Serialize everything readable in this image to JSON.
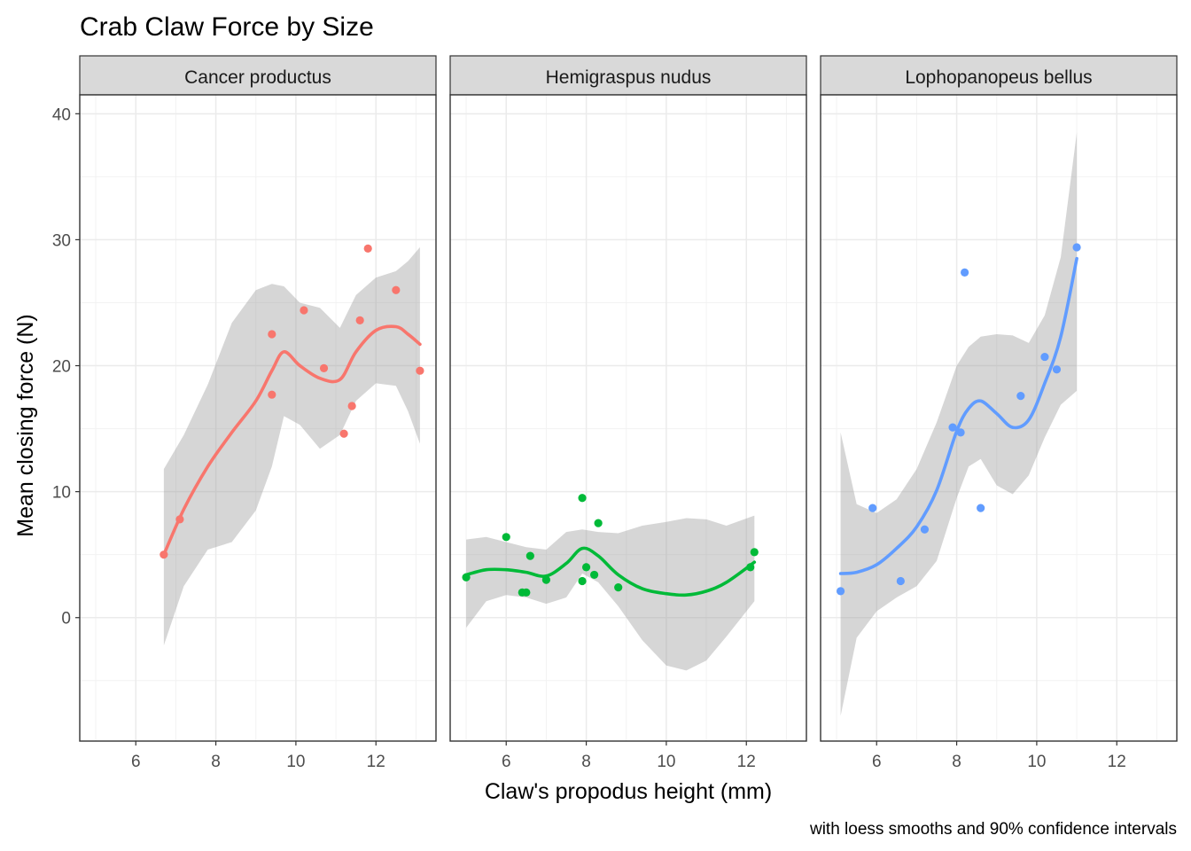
{
  "chart_data": {
    "type": "scatter",
    "title": "Crab Claw Force by Size",
    "xlabel": "Claw's propodus height (mm)",
    "ylabel": "Mean closing force (N)",
    "caption": "with loess smooths and 90% confidence intervals",
    "xlim": [
      4.6,
      13.5
    ],
    "ylim": [
      -9.8,
      41.5
    ],
    "x_ticks": [
      6,
      8,
      10,
      12
    ],
    "y_ticks": [
      0,
      10,
      20,
      30,
      40
    ],
    "grid": true,
    "panels": [
      {
        "name": "Cancer productus",
        "color": "#F8766D",
        "points": [
          {
            "x": 6.7,
            "y": 5.0
          },
          {
            "x": 7.1,
            "y": 7.8
          },
          {
            "x": 9.4,
            "y": 22.5
          },
          {
            "x": 9.4,
            "y": 17.7
          },
          {
            "x": 10.2,
            "y": 24.4
          },
          {
            "x": 10.7,
            "y": 19.8
          },
          {
            "x": 11.2,
            "y": 14.6
          },
          {
            "x": 11.4,
            "y": 16.8
          },
          {
            "x": 11.6,
            "y": 23.6
          },
          {
            "x": 11.8,
            "y": 29.3
          },
          {
            "x": 12.5,
            "y": 26.0
          },
          {
            "x": 13.1,
            "y": 19.6
          }
        ],
        "smooth": [
          {
            "x": 6.7,
            "y": 5.0,
            "lo": -2.2,
            "hi": 11.8
          },
          {
            "x": 7.2,
            "y": 8.6,
            "lo": 2.5,
            "hi": 14.5
          },
          {
            "x": 7.8,
            "y": 12.0,
            "lo": 5.4,
            "hi": 18.5
          },
          {
            "x": 8.4,
            "y": 14.7,
            "lo": 6.0,
            "hi": 23.4
          },
          {
            "x": 9.0,
            "y": 17.2,
            "lo": 8.5,
            "hi": 26.0
          },
          {
            "x": 9.4,
            "y": 19.6,
            "lo": 12.0,
            "hi": 26.5
          },
          {
            "x": 9.7,
            "y": 21.1,
            "lo": 16.0,
            "hi": 26.3
          },
          {
            "x": 10.1,
            "y": 20.0,
            "lo": 15.3,
            "hi": 25.0
          },
          {
            "x": 10.6,
            "y": 19.0,
            "lo": 13.4,
            "hi": 24.6
          },
          {
            "x": 11.1,
            "y": 18.9,
            "lo": 14.5,
            "hi": 23.0
          },
          {
            "x": 11.5,
            "y": 21.1,
            "lo": 17.2,
            "hi": 25.6
          },
          {
            "x": 12.0,
            "y": 22.8,
            "lo": 18.6,
            "hi": 27.0
          },
          {
            "x": 12.5,
            "y": 23.1,
            "lo": 18.4,
            "hi": 27.5
          },
          {
            "x": 12.8,
            "y": 22.5,
            "lo": 16.4,
            "hi": 28.3
          },
          {
            "x": 13.1,
            "y": 21.7,
            "lo": 13.8,
            "hi": 29.4
          }
        ]
      },
      {
        "name": "Hemigraspus nudus",
        "color": "#00BA38",
        "points": [
          {
            "x": 5.0,
            "y": 3.2
          },
          {
            "x": 6.0,
            "y": 6.4
          },
          {
            "x": 6.4,
            "y": 2.0
          },
          {
            "x": 6.5,
            "y": 2.0
          },
          {
            "x": 6.6,
            "y": 4.9
          },
          {
            "x": 7.0,
            "y": 3.0
          },
          {
            "x": 7.9,
            "y": 9.5
          },
          {
            "x": 7.9,
            "y": 2.9
          },
          {
            "x": 8.0,
            "y": 4.0
          },
          {
            "x": 8.2,
            "y": 3.4
          },
          {
            "x": 8.3,
            "y": 7.5
          },
          {
            "x": 8.8,
            "y": 2.4
          },
          {
            "x": 12.1,
            "y": 4.0
          },
          {
            "x": 12.2,
            "y": 5.2
          }
        ],
        "smooth": [
          {
            "x": 5.0,
            "y": 3.4,
            "lo": -0.8,
            "hi": 6.2
          },
          {
            "x": 5.5,
            "y": 3.8,
            "lo": 1.3,
            "hi": 6.4
          },
          {
            "x": 6.0,
            "y": 3.8,
            "lo": 1.8,
            "hi": 6.0
          },
          {
            "x": 6.5,
            "y": 3.6,
            "lo": 1.6,
            "hi": 5.6
          },
          {
            "x": 7.0,
            "y": 3.3,
            "lo": 1.1,
            "hi": 5.4
          },
          {
            "x": 7.5,
            "y": 4.3,
            "lo": 1.6,
            "hi": 6.8
          },
          {
            "x": 7.9,
            "y": 5.5,
            "lo": 3.5,
            "hi": 7.0
          },
          {
            "x": 8.3,
            "y": 4.9,
            "lo": 2.8,
            "hi": 6.8
          },
          {
            "x": 8.8,
            "y": 3.4,
            "lo": 0.9,
            "hi": 6.7
          },
          {
            "x": 9.4,
            "y": 2.3,
            "lo": -1.8,
            "hi": 7.3
          },
          {
            "x": 10.0,
            "y": 1.9,
            "lo": -3.8,
            "hi": 7.6
          },
          {
            "x": 10.5,
            "y": 1.8,
            "lo": -4.2,
            "hi": 7.9
          },
          {
            "x": 11.0,
            "y": 2.1,
            "lo": -3.4,
            "hi": 7.8
          },
          {
            "x": 11.5,
            "y": 2.8,
            "lo": -1.5,
            "hi": 7.3
          },
          {
            "x": 12.2,
            "y": 4.4,
            "lo": 1.3,
            "hi": 8.1
          }
        ]
      },
      {
        "name": "Lophopanopeus bellus",
        "color": "#619CFF",
        "points": [
          {
            "x": 5.1,
            "y": 2.1
          },
          {
            "x": 5.9,
            "y": 8.7
          },
          {
            "x": 6.6,
            "y": 2.9
          },
          {
            "x": 7.2,
            "y": 7.0
          },
          {
            "x": 7.9,
            "y": 15.1
          },
          {
            "x": 8.1,
            "y": 14.7
          },
          {
            "x": 8.2,
            "y": 27.4
          },
          {
            "x": 8.6,
            "y": 8.7
          },
          {
            "x": 9.6,
            "y": 17.6
          },
          {
            "x": 10.2,
            "y": 20.7
          },
          {
            "x": 10.5,
            "y": 19.7
          },
          {
            "x": 11.0,
            "y": 29.4
          }
        ],
        "smooth": [
          {
            "x": 5.1,
            "y": 3.5,
            "lo": -7.8,
            "hi": 14.7
          },
          {
            "x": 5.5,
            "y": 3.6,
            "lo": -1.6,
            "hi": 9.0
          },
          {
            "x": 6.0,
            "y": 4.2,
            "lo": 0.5,
            "hi": 8.3
          },
          {
            "x": 6.5,
            "y": 5.5,
            "lo": 1.6,
            "hi": 9.4
          },
          {
            "x": 7.0,
            "y": 7.2,
            "lo": 2.5,
            "hi": 11.8
          },
          {
            "x": 7.5,
            "y": 10.1,
            "lo": 4.5,
            "hi": 15.5
          },
          {
            "x": 8.0,
            "y": 14.8,
            "lo": 9.5,
            "hi": 20.0
          },
          {
            "x": 8.3,
            "y": 16.6,
            "lo": 12.0,
            "hi": 21.5
          },
          {
            "x": 8.6,
            "y": 17.2,
            "lo": 12.6,
            "hi": 22.3
          },
          {
            "x": 9.0,
            "y": 16.2,
            "lo": 10.5,
            "hi": 22.5
          },
          {
            "x": 9.4,
            "y": 15.1,
            "lo": 9.8,
            "hi": 22.4
          },
          {
            "x": 9.8,
            "y": 15.7,
            "lo": 11.3,
            "hi": 21.8
          },
          {
            "x": 10.2,
            "y": 18.6,
            "lo": 14.3,
            "hi": 24.0
          },
          {
            "x": 10.6,
            "y": 22.3,
            "lo": 16.9,
            "hi": 28.6
          },
          {
            "x": 11.0,
            "y": 28.5,
            "lo": 18.0,
            "hi": 38.5
          }
        ]
      }
    ]
  }
}
